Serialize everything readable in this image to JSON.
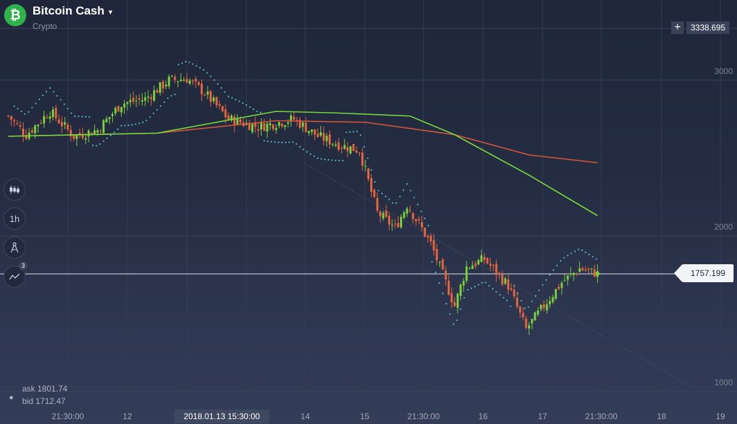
{
  "asset": {
    "name": "Bitcoin Cash",
    "category": "Crypto",
    "icon": "bitcoin-cash-icon",
    "icon_glyph": "₿",
    "dropdown_icon": "▾"
  },
  "toolbar": {
    "chart_type_icon": "candles-icon",
    "timeframe_label": "1h",
    "drawing_tool_icon": "compass-icon",
    "indicators_badge": "3"
  },
  "price_axis": {
    "zoom_label": "+",
    "top_value": "3338.695",
    "levels": [
      "3000",
      "2000",
      "1000"
    ],
    "current_price": "1757.199"
  },
  "quote": {
    "ask": "ask 1801.74",
    "bid": "bid 1712.47",
    "icon": "currency-icon"
  },
  "time_axis": {
    "labels": [
      "21:30:00",
      "12",
      "14",
      "15",
      "21:30:00",
      "16",
      "17",
      "21:30:00",
      "18",
      "19"
    ],
    "cursor_label": "2018.01.13 15:30:00"
  },
  "colors": {
    "up_candle": "#7bd13c",
    "down_candle": "#e8653d",
    "ma_fast": "#7ad93a",
    "ma_slow": "#d8563b",
    "sar_dots": "#5fd3e6",
    "background": "#252d43"
  },
  "chart_data": {
    "type": "candlestick",
    "x_start": "2018-01-11 18:00",
    "interval": "1h",
    "y_axis": {
      "min": 900,
      "max": 3350,
      "ticks": [
        1000,
        2000,
        3000
      ]
    },
    "current_price": 1757.199,
    "indicators": [
      "moving_average_fast",
      "moving_average_slow",
      "parabolic_sar"
    ],
    "keypoints_close": [
      {
        "hour": 0,
        "price": 2770
      },
      {
        "hour": 6,
        "price": 2650
      },
      {
        "hour": 14,
        "price": 2800
      },
      {
        "hour": 22,
        "price": 2640
      },
      {
        "hour": 30,
        "price": 2680
      },
      {
        "hour": 38,
        "price": 2850
      },
      {
        "hour": 46,
        "price": 2880
      },
      {
        "hour": 54,
        "price": 3000
      },
      {
        "hour": 60,
        "price": 3010
      },
      {
        "hour": 66,
        "price": 2920
      },
      {
        "hour": 74,
        "price": 2750
      },
      {
        "hour": 84,
        "price": 2700
      },
      {
        "hour": 96,
        "price": 2750
      },
      {
        "hour": 104,
        "price": 2640
      },
      {
        "hour": 112,
        "price": 2580
      },
      {
        "hour": 118,
        "price": 2550
      },
      {
        "hour": 124,
        "price": 2150
      },
      {
        "hour": 130,
        "price": 2050
      },
      {
        "hour": 134,
        "price": 2200
      },
      {
        "hour": 142,
        "price": 1950
      },
      {
        "hour": 150,
        "price": 1550
      },
      {
        "hour": 154,
        "price": 1800
      },
      {
        "hour": 160,
        "price": 1850
      },
      {
        "hour": 168,
        "price": 1680
      },
      {
        "hour": 174,
        "price": 1400
      },
      {
        "hour": 180,
        "price": 1550
      },
      {
        "hour": 186,
        "price": 1700
      },
      {
        "hour": 192,
        "price": 1790
      },
      {
        "hour": 198,
        "price": 1757
      }
    ],
    "moving_average_fast": [
      {
        "hour": 0,
        "price": 2640
      },
      {
        "hour": 50,
        "price": 2660
      },
      {
        "hour": 90,
        "price": 2800
      },
      {
        "hour": 110,
        "price": 2790
      },
      {
        "hour": 135,
        "price": 2770
      },
      {
        "hour": 150,
        "price": 2650
      },
      {
        "hour": 175,
        "price": 2390
      },
      {
        "hour": 198,
        "price": 2130
      }
    ],
    "moving_average_slow": [
      {
        "hour": 0,
        "price": 2640
      },
      {
        "hour": 50,
        "price": 2660
      },
      {
        "hour": 90,
        "price": 2740
      },
      {
        "hour": 120,
        "price": 2730
      },
      {
        "hour": 150,
        "price": 2650
      },
      {
        "hour": 175,
        "price": 2520
      },
      {
        "hour": 198,
        "price": 2470
      }
    ]
  }
}
